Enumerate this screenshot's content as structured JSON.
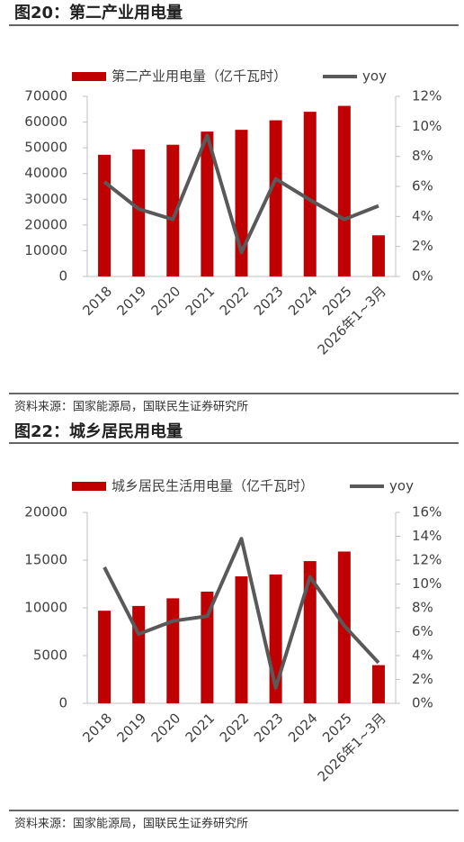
{
  "chart_data": [
    {
      "type": "bar",
      "title": "图20：第二产业用电量",
      "source": "资料来源：国家能源局，国联民生证券研究所",
      "categories": [
        "2018",
        "2019",
        "2020",
        "2021",
        "2022",
        "2023",
        "2024",
        "2025",
        "2026年1~3月"
      ],
      "series": [
        {
          "name": "第二产业用电量（亿千瓦时）",
          "type": "bar",
          "color": "#c00000",
          "values": [
            47300,
            49400,
            51200,
            56300,
            57000,
            60700,
            64000,
            66300,
            16000
          ]
        },
        {
          "name": "yoy",
          "type": "line",
          "axis": "y2",
          "color": "#595959",
          "values": [
            6.3,
            4.5,
            3.8,
            9.4,
            1.6,
            6.5,
            5.1,
            3.8,
            4.7
          ]
        }
      ],
      "ylim": [
        0,
        70000
      ],
      "yticks": [
        0,
        10000,
        20000,
        30000,
        40000,
        50000,
        60000,
        70000
      ],
      "y2lim": [
        0,
        12
      ],
      "y2ticks": [
        {
          "value": 0,
          "label": "0%"
        },
        {
          "value": 2,
          "label": "2%"
        },
        {
          "value": 4,
          "label": "4%"
        },
        {
          "value": 6,
          "label": "6%"
        },
        {
          "value": 8,
          "label": "8%"
        },
        {
          "value": 10,
          "label": "10%"
        },
        {
          "value": 12,
          "label": "12%"
        }
      ],
      "legend": "top"
    },
    {
      "type": "bar",
      "title": "图22：城乡居民用电量",
      "source": "资料来源：国家能源局，国联民生证券研究所",
      "categories": [
        "2018",
        "2019",
        "2020",
        "2021",
        "2022",
        "2023",
        "2024",
        "2025",
        "2026年1~3月"
      ],
      "series": [
        {
          "name": "城乡居民生活用电量（亿千瓦时）",
          "type": "bar",
          "color": "#c00000",
          "values": [
            9700,
            10200,
            11000,
            11700,
            13300,
            13500,
            14900,
            15900,
            4000
          ]
        },
        {
          "name": "yoy",
          "type": "line",
          "axis": "y2",
          "color": "#595959",
          "values": [
            11.4,
            5.8,
            6.9,
            7.3,
            13.8,
            1.3,
            10.6,
            6.5,
            3.4
          ]
        }
      ],
      "ylim": [
        0,
        20000
      ],
      "yticks": [
        0,
        5000,
        10000,
        15000,
        20000
      ],
      "y2lim": [
        0,
        16
      ],
      "y2ticks": [
        {
          "value": 0,
          "label": "0%"
        },
        {
          "value": 2,
          "label": "2%"
        },
        {
          "value": 4,
          "label": "4%"
        },
        {
          "value": 6,
          "label": "6%"
        },
        {
          "value": 8,
          "label": "8%"
        },
        {
          "value": 10,
          "label": "10%"
        },
        {
          "value": 12,
          "label": "12%"
        },
        {
          "value": 14,
          "label": "14%"
        },
        {
          "value": 16,
          "label": "16%"
        }
      ],
      "legend": "top"
    }
  ]
}
